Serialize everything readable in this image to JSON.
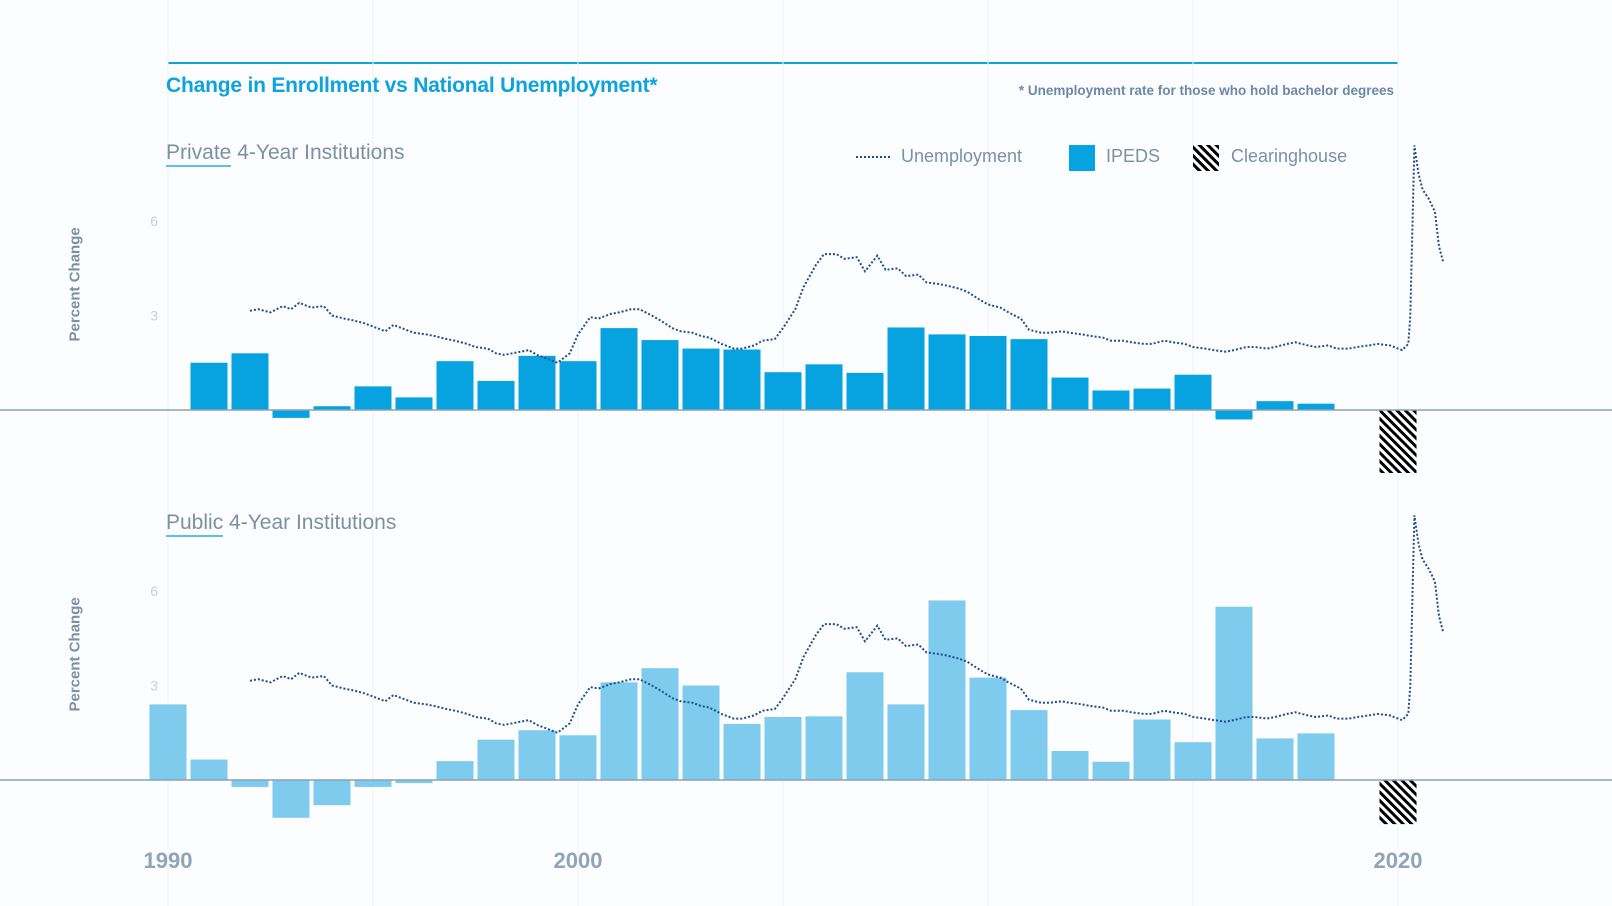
{
  "title": "Change in Enrollment vs National Unemployment*",
  "footnote": "* Unemployment rate for those who hold bachelor degrees",
  "legend": {
    "unemployment": "Unemployment",
    "ipeds": "IPEDS",
    "clearinghouse": "Clearinghouse"
  },
  "colors": {
    "private_bar": "#07a3e0",
    "public_bar": "#7ecbee",
    "line": "#1c4f8c",
    "axis": "#8aa2b8",
    "accent": "#0ea3dd"
  },
  "chart_data": [
    {
      "type": "bar",
      "panel": "private",
      "title_highlight": "Private",
      "title_rest": " 4-Year Institutions",
      "ylabel": "Percent Change",
      "yticks": [
        3,
        6
      ],
      "xlim": [
        1990,
        2020
      ],
      "xticks": [
        "1990",
        "2000",
        "2020"
      ],
      "series": [
        {
          "name": "IPEDS",
          "x": [
            1991,
            1992,
            1993,
            1994,
            1995,
            1996,
            1997,
            1998,
            1999,
            2000,
            2001,
            2002,
            2003,
            2004,
            2005,
            2006,
            2007,
            2008,
            2009,
            2010,
            2011,
            2012,
            2013,
            2014,
            2015,
            2016,
            2017,
            2018,
            2019
          ],
          "values": [
            1.5,
            1.8,
            -0.25,
            0.12,
            0.75,
            0.4,
            1.55,
            0.92,
            1.72,
            1.55,
            2.6,
            2.22,
            1.95,
            1.92,
            1.2,
            1.45,
            1.18,
            2.62,
            2.4,
            2.35,
            2.25,
            1.03,
            0.62,
            0.68,
            1.12,
            -0.3,
            0.28,
            0.2,
            0.0
          ]
        },
        {
          "name": "Clearinghouse",
          "x": [
            2020
          ],
          "values": [
            -2.0
          ]
        }
      ]
    },
    {
      "type": "bar",
      "panel": "public",
      "title_highlight": "Public",
      "title_rest": " 4-Year Institutions",
      "ylabel": "Percent Change",
      "yticks": [
        3,
        6
      ],
      "xlim": [
        1990,
        2020
      ],
      "xticks": [
        "1990",
        "2000",
        "2020"
      ],
      "series": [
        {
          "name": "IPEDS",
          "x": [
            1990,
            1991,
            1992,
            1993,
            1994,
            1995,
            1996,
            1997,
            1998,
            1999,
            2000,
            2001,
            2002,
            2003,
            2004,
            2005,
            2006,
            2007,
            2008,
            2009,
            2010,
            2011,
            2012,
            2013,
            2014,
            2015,
            2016,
            2017,
            2018,
            2019
          ],
          "values": [
            2.4,
            0.65,
            -0.22,
            -1.2,
            -0.8,
            -0.22,
            -0.1,
            0.6,
            1.28,
            1.58,
            1.42,
            3.1,
            3.55,
            3.0,
            1.78,
            2.0,
            2.02,
            3.42,
            2.4,
            5.7,
            3.25,
            2.22,
            0.92,
            0.58,
            1.92,
            1.2,
            5.5,
            1.32,
            1.48,
            0.0
          ]
        },
        {
          "name": "Clearinghouse",
          "x": [
            2020
          ],
          "values": [
            -1.4
          ]
        }
      ]
    },
    {
      "type": "line",
      "name": "Unemployment",
      "x": [
        1992.0,
        1992.2,
        1992.5,
        1992.8,
        1993.0,
        1993.2,
        1993.5,
        1993.8,
        1994.0,
        1994.3,
        1994.5,
        1994.8,
        1995.0,
        1995.3,
        1995.5,
        1995.8,
        1996.0,
        1996.3,
        1996.5,
        1996.8,
        1997.0,
        1997.3,
        1997.5,
        1997.8,
        1998.0,
        1998.2,
        1998.4,
        1998.6,
        1998.8,
        1999.0,
        1999.2,
        1999.5,
        1999.8,
        2000.0,
        2000.3,
        2000.5,
        2000.8,
        2001.0,
        2001.3,
        2001.5,
        2001.8,
        2002.0,
        2002.3,
        2002.5,
        2002.8,
        2003.0,
        2003.2,
        2003.5,
        2003.8,
        2004.0,
        2004.3,
        2004.5,
        2004.8,
        2005.0,
        2005.3,
        2005.5,
        2005.8,
        2006.0,
        2006.3,
        2006.5,
        2006.8,
        2007.0,
        2007.3,
        2007.5,
        2007.8,
        2008.0,
        2008.3,
        2008.5,
        2008.8,
        2009.0,
        2009.3,
        2009.5,
        2009.8,
        2010.0,
        2010.3,
        2010.5,
        2010.8,
        2011.0,
        2011.3,
        2011.5,
        2011.8,
        2012.0,
        2012.3,
        2012.5,
        2012.8,
        2013.0,
        2013.3,
        2013.5,
        2013.8,
        2014.0,
        2014.3,
        2014.5,
        2014.8,
        2015.0,
        2015.3,
        2015.5,
        2015.8,
        2016.0,
        2016.3,
        2016.5,
        2016.8,
        2017.0,
        2017.3,
        2017.5,
        2017.8,
        2018.0,
        2018.3,
        2018.5,
        2018.8,
        2019.0,
        2019.3,
        2019.5,
        2019.8,
        2020.0,
        2020.1,
        2020.25,
        2020.3,
        2020.4,
        2020.5,
        2020.6,
        2020.75,
        2020.9,
        2021.0,
        2021.1
      ],
      "values": [
        3.15,
        3.2,
        3.1,
        3.3,
        3.2,
        3.4,
        3.25,
        3.3,
        3.0,
        2.9,
        2.85,
        2.75,
        2.65,
        2.5,
        2.7,
        2.55,
        2.45,
        2.4,
        2.35,
        2.25,
        2.2,
        2.1,
        2.0,
        1.95,
        1.8,
        1.75,
        1.8,
        1.85,
        1.9,
        1.75,
        1.65,
        1.5,
        1.8,
        2.4,
        2.95,
        2.9,
        3.05,
        3.1,
        3.2,
        3.2,
        3.0,
        2.85,
        2.6,
        2.5,
        2.45,
        2.35,
        2.3,
        2.1,
        1.95,
        1.95,
        2.05,
        2.2,
        2.25,
        2.6,
        3.2,
        3.9,
        4.6,
        4.95,
        4.95,
        4.8,
        4.85,
        4.4,
        4.9,
        4.45,
        4.5,
        4.25,
        4.3,
        4.05,
        4.0,
        3.95,
        3.85,
        3.75,
        3.5,
        3.35,
        3.25,
        3.1,
        2.9,
        2.55,
        2.45,
        2.45,
        2.5,
        2.45,
        2.4,
        2.35,
        2.3,
        2.2,
        2.2,
        2.15,
        2.1,
        2.1,
        2.2,
        2.15,
        2.1,
        2.0,
        1.95,
        1.9,
        1.85,
        1.9,
        2.0,
        2.0,
        1.95,
        2.0,
        2.1,
        2.15,
        2.05,
        2.0,
        2.05,
        1.95,
        1.95,
        2.0,
        2.05,
        2.1,
        2.05,
        1.95,
        1.9,
        2.1,
        3.0,
        8.4,
        7.5,
        7.0,
        6.7,
        6.3,
        5.2,
        4.7
      ]
    }
  ]
}
